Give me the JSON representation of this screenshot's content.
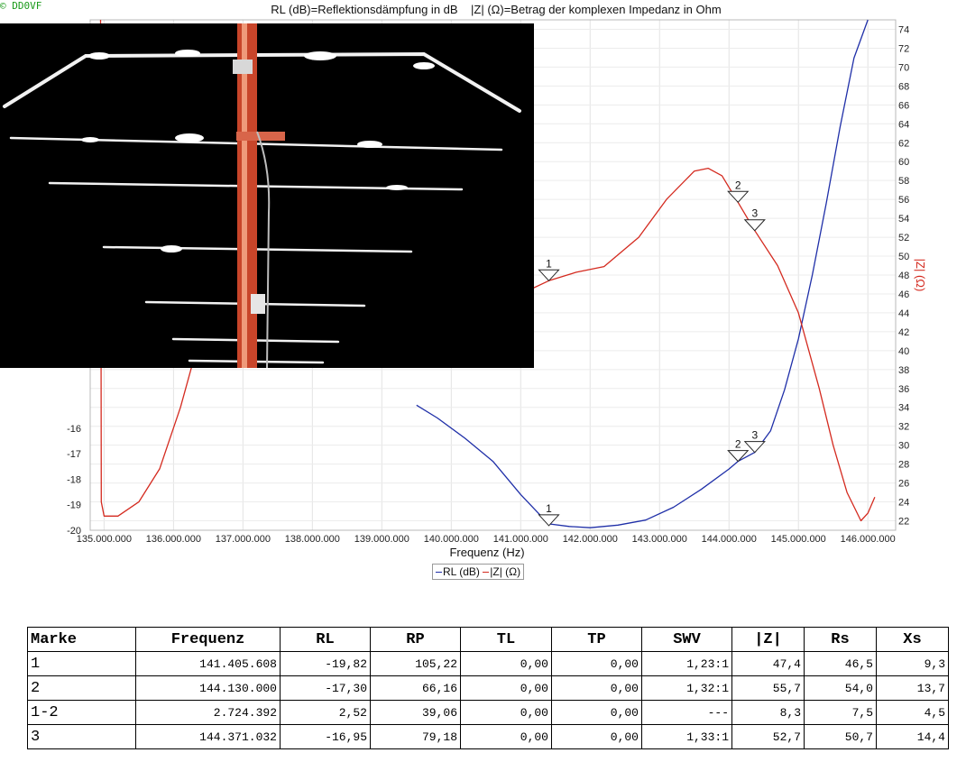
{
  "copyright": "© DD0VF",
  "chart_data": {
    "type": "line",
    "title": "RL (dB)=Reflektionsdämpfung in dB    |Z| (Ω)=Betrag der komplexen Impedanz in Ohm",
    "xlabel": "Frequenz (Hz)",
    "ylabel_right": "|Z| (Ω)",
    "xlim": [
      134800000,
      146400000
    ],
    "ylim_left": [
      -20,
      0
    ],
    "ylim_right": [
      21,
      75
    ],
    "grid": true,
    "legend_placement": "bottom-center",
    "x_tick_labels": [
      "135.000.000",
      "136.000.000",
      "137.000.000",
      "138.000.000",
      "139.000.000",
      "140.000.000",
      "141.000.000",
      "142.000.000",
      "143.000.000",
      "144.000.000",
      "145.000.000",
      "146.000.000"
    ],
    "y_left_tick_labels": [
      "-16",
      "-17",
      "-18",
      "-19",
      "-20"
    ],
    "y_right_tick_labels": [
      "22",
      "24",
      "26",
      "28",
      "30",
      "32",
      "34",
      "36",
      "38",
      "40",
      "42",
      "44",
      "46",
      "48",
      "50",
      "52",
      "54",
      "56",
      "58",
      "60",
      "62",
      "64",
      "66",
      "68",
      "70",
      "72",
      "74"
    ],
    "series": [
      {
        "name": "RL (dB)",
        "axis": "left",
        "color": "#1f2fa8",
        "x": [
          139500000,
          139800000,
          140200000,
          140600000,
          141000000,
          141400000,
          141700000,
          142000000,
          142400000,
          142800000,
          143200000,
          143600000,
          144000000,
          144130000,
          144370000,
          144600000,
          144800000,
          145000000,
          145200000,
          145400000,
          145600000,
          145800000,
          146000000
        ],
        "y": [
          -15.1,
          -15.6,
          -16.4,
          -17.3,
          -18.6,
          -19.75,
          -19.85,
          -19.9,
          -19.8,
          -19.6,
          -19.1,
          -18.4,
          -17.6,
          -17.3,
          -16.95,
          -16.1,
          -14.5,
          -12.5,
          -10,
          -7.2,
          -4.2,
          -1.5,
          0
        ]
      },
      {
        "name": "|Z| (Ω)",
        "axis": "right",
        "color": "#d42a1f",
        "x": [
          134950000,
          134960000,
          135000000,
          135200000,
          135500000,
          135800000,
          136100000,
          136400000,
          141000000,
          141405608,
          141800000,
          142200000,
          142700000,
          143100000,
          143500000,
          143700000,
          143900000,
          144130000,
          144371032,
          144700000,
          145000000,
          145300000,
          145500000,
          145700000,
          145900000,
          146000000,
          146100000
        ],
        "y": [
          75,
          24,
          22.5,
          22.5,
          24,
          27.5,
          34,
          42,
          46,
          47.4,
          48.3,
          48.9,
          52,
          56,
          59,
          59.3,
          58.5,
          55.7,
          52.7,
          49,
          44,
          36,
          30,
          25,
          22,
          22.8,
          24.5
        ]
      }
    ],
    "markers": [
      {
        "label": "1",
        "rl_x": 141405608,
        "rl_y": -19.82,
        "z_x": 141405608,
        "z_y": 47.4
      },
      {
        "label": "2",
        "rl_x": 144130000,
        "rl_y": -17.3,
        "z_x": 144130000,
        "z_y": 55.7
      },
      {
        "label": "3",
        "rl_x": 144371032,
        "rl_y": -16.95,
        "z_x": 144371032,
        "z_y": 52.7
      }
    ]
  },
  "legend": {
    "item1": "RL (dB)",
    "item2": "|Z| (Ω)",
    "color1": "#1f2fa8",
    "color2": "#d42a1f"
  },
  "table": {
    "headers": [
      "Marke",
      "Frequenz",
      "RL",
      "RP",
      "TL",
      "TP",
      "SWV",
      "|Z|",
      "Rs",
      "Xs"
    ],
    "rows": [
      [
        "1",
        "141.405.608",
        "-19,82",
        "105,22",
        "0,00",
        "0,00",
        "1,23:1",
        "47,4",
        "46,5",
        "9,3"
      ],
      [
        "2",
        "144.130.000",
        "-17,30",
        "66,16",
        "0,00",
        "0,00",
        "1,32:1",
        "55,7",
        "54,0",
        "13,7"
      ],
      [
        "1-2",
        "2.724.392",
        "2,52",
        "39,06",
        "0,00",
        "0,00",
        "---",
        "8,3",
        "7,5",
        "4,5"
      ],
      [
        "3",
        "144.371.032",
        "-16,95",
        "79,18",
        "0,00",
        "0,00",
        "1,33:1",
        "52,7",
        "50,7",
        "14,4"
      ]
    ]
  }
}
